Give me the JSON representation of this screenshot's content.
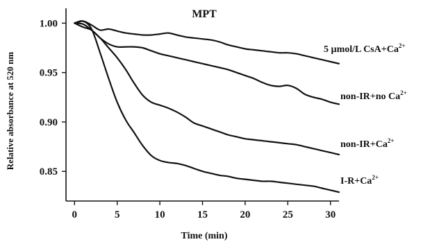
{
  "chart_data": {
    "type": "line",
    "title": "MPT",
    "xlabel": "Time (min)",
    "ylabel": "Relative absorbance at 520 nm",
    "xlim": [
      -1,
      31
    ],
    "ylim": [
      0.82,
      1.015
    ],
    "xticks": [
      0,
      5,
      10,
      15,
      20,
      25,
      30
    ],
    "yticks": [
      0.85,
      0.9,
      0.95,
      1.0
    ],
    "ytick_labels": [
      "0.85",
      "0.90",
      "0.95",
      "1.00"
    ],
    "grid": false,
    "series": [
      {
        "name": "5 µmol/L CsA+Ca",
        "superscript": "2+",
        "x": [
          0,
          1,
          2,
          3,
          4,
          5,
          6,
          7,
          8,
          9,
          10,
          11,
          12,
          13,
          14,
          15,
          16,
          17,
          18,
          19,
          20,
          21,
          22,
          23,
          24,
          25,
          26,
          27,
          28,
          29,
          30,
          31
        ],
        "y": [
          1.0,
          1.002,
          0.998,
          0.993,
          0.994,
          0.992,
          0.99,
          0.989,
          0.988,
          0.988,
          0.989,
          0.99,
          0.988,
          0.986,
          0.985,
          0.984,
          0.983,
          0.981,
          0.978,
          0.976,
          0.974,
          0.973,
          0.972,
          0.971,
          0.97,
          0.97,
          0.969,
          0.967,
          0.965,
          0.963,
          0.961,
          0.959
        ]
      },
      {
        "name": "non-IR+no Ca",
        "superscript": "2+",
        "x": [
          0,
          1,
          2,
          3,
          4,
          5,
          6,
          7,
          8,
          9,
          10,
          11,
          12,
          13,
          14,
          15,
          16,
          17,
          18,
          19,
          20,
          21,
          22,
          23,
          24,
          25,
          26,
          27,
          28,
          29,
          30,
          31
        ],
        "y": [
          1.0,
          0.996,
          0.993,
          0.985,
          0.979,
          0.976,
          0.976,
          0.976,
          0.975,
          0.972,
          0.969,
          0.967,
          0.965,
          0.963,
          0.961,
          0.959,
          0.957,
          0.955,
          0.953,
          0.95,
          0.947,
          0.944,
          0.94,
          0.937,
          0.936,
          0.937,
          0.934,
          0.928,
          0.925,
          0.923,
          0.92,
          0.918
        ]
      },
      {
        "name": "non-IR+Ca",
        "superscript": "2+",
        "x": [
          0,
          1,
          2,
          3,
          4,
          5,
          6,
          7,
          8,
          9,
          10,
          11,
          12,
          13,
          14,
          15,
          16,
          17,
          18,
          19,
          20,
          21,
          22,
          23,
          24,
          25,
          26,
          27,
          28,
          29,
          30,
          31
        ],
        "y": [
          1.0,
          0.999,
          0.993,
          0.985,
          0.975,
          0.965,
          0.953,
          0.939,
          0.927,
          0.92,
          0.917,
          0.914,
          0.91,
          0.905,
          0.899,
          0.896,
          0.893,
          0.89,
          0.887,
          0.885,
          0.883,
          0.882,
          0.881,
          0.88,
          0.879,
          0.878,
          0.877,
          0.875,
          0.873,
          0.871,
          0.869,
          0.867
        ]
      },
      {
        "name": "I-R+Ca",
        "superscript": "2+",
        "x": [
          0,
          1,
          2,
          3,
          4,
          5,
          6,
          7,
          8,
          9,
          10,
          11,
          12,
          13,
          14,
          15,
          16,
          17,
          18,
          19,
          20,
          21,
          22,
          23,
          24,
          25,
          26,
          27,
          28,
          29,
          30,
          31
        ],
        "y": [
          1.0,
          1.002,
          0.994,
          0.97,
          0.944,
          0.92,
          0.902,
          0.889,
          0.876,
          0.866,
          0.861,
          0.859,
          0.858,
          0.856,
          0.853,
          0.85,
          0.848,
          0.846,
          0.845,
          0.843,
          0.842,
          0.841,
          0.84,
          0.84,
          0.839,
          0.838,
          0.837,
          0.836,
          0.835,
          0.833,
          0.831,
          0.829
        ]
      }
    ]
  }
}
